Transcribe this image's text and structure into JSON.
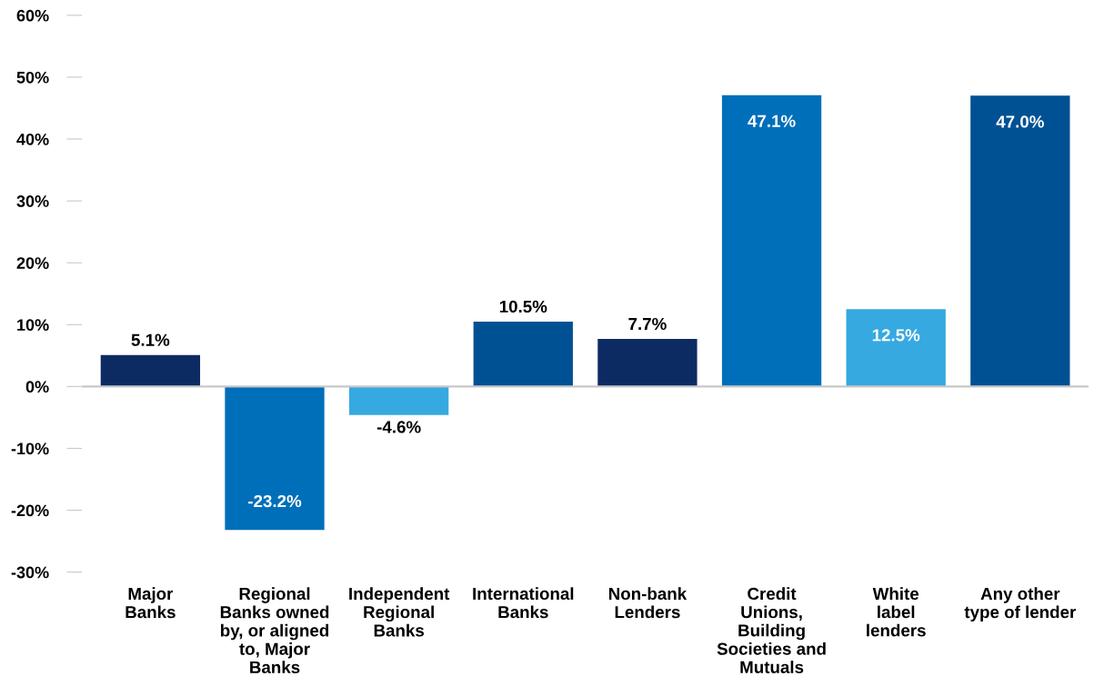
{
  "chart_data": {
    "type": "bar",
    "categories": [
      "Major\nBanks",
      "Regional\nBanks owned\nby, or aligned\nto, Major\nBanks",
      "Independent\nRegional\nBanks",
      "International\nBanks",
      "Non-bank\nLenders",
      "Credit\nUnions,\nBuilding\nSocieties and\nMutuals",
      "White\nlabel\nlenders",
      "Any other\ntype of lender"
    ],
    "values": [
      5.1,
      -23.2,
      -4.6,
      10.5,
      7.7,
      47.1,
      12.5,
      47.0
    ],
    "value_labels": [
      "5.1%",
      "-23.2%",
      "-4.6%",
      "10.5%",
      "7.7%",
      "47.1%",
      "12.5%",
      "47.0%"
    ],
    "colors": [
      "#0d2b63",
      "#006fba",
      "#36a9e0",
      "#005193",
      "#0d2b63",
      "#006fba",
      "#36a9e0",
      "#005193"
    ],
    "ylim": [
      -30,
      60
    ],
    "yticks": [
      {
        "value": -30,
        "label": "-30%"
      },
      {
        "value": -20,
        "label": "-20%"
      },
      {
        "value": -10,
        "label": "-10%"
      },
      {
        "value": 0,
        "label": "0%"
      },
      {
        "value": 10,
        "label": "10%"
      },
      {
        "value": 20,
        "label": "20%"
      },
      {
        "value": 30,
        "label": "30%"
      },
      {
        "value": 40,
        "label": "40%"
      },
      {
        "value": 50,
        "label": "50%"
      },
      {
        "value": 60,
        "label": "60%"
      }
    ],
    "ref_lines": [
      {
        "axis": "y",
        "value": 0,
        "color": "#c8c8c8"
      }
    ],
    "grid": false,
    "legend": false
  }
}
